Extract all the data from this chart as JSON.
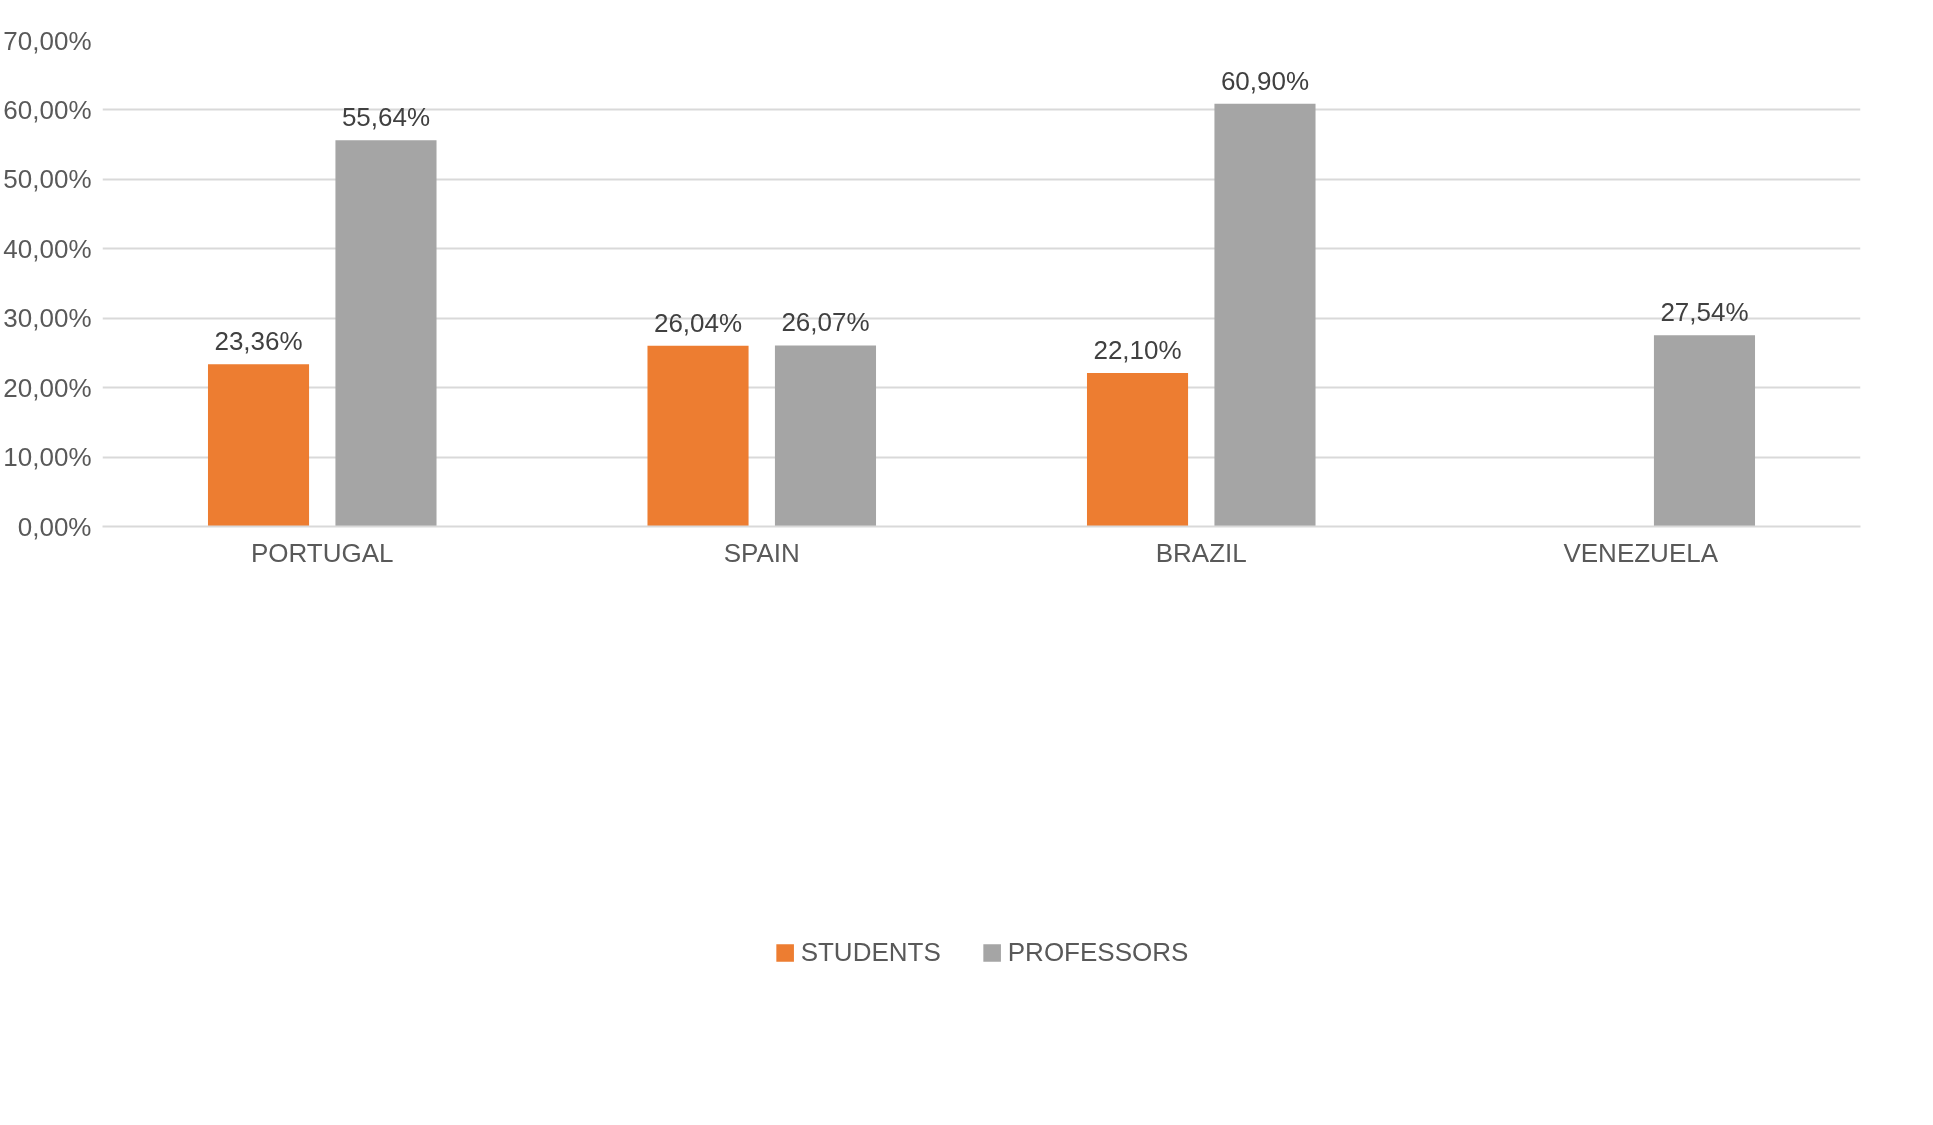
{
  "chart_data": {
    "type": "bar",
    "categories": [
      "PORTUGAL",
      "SPAIN",
      "BRAZIL",
      "VENEZUELA"
    ],
    "series": [
      {
        "name": "STUDENTS",
        "color": "#ed7d31",
        "values": [
          23.36,
          26.04,
          22.1,
          null
        ],
        "value_labels": [
          "23,36%",
          "26,04%",
          "22,10%",
          null
        ]
      },
      {
        "name": "PROFESSORS",
        "color": "#a5a5a5",
        "values": [
          55.64,
          26.07,
          60.9,
          27.54
        ],
        "value_labels": [
          "55,64%",
          "26,07%",
          "60,90%",
          "27,54%"
        ]
      }
    ],
    "ylim": [
      0,
      70
    ],
    "yticks": [
      {
        "value": 0,
        "label": "0,00%"
      },
      {
        "value": 10,
        "label": "10,00%"
      },
      {
        "value": 20,
        "label": "20,00%"
      },
      {
        "value": 30,
        "label": "30,00%"
      },
      {
        "value": 40,
        "label": "40,00%"
      },
      {
        "value": 50,
        "label": "50,00%"
      },
      {
        "value": 60,
        "label": "60,00%"
      },
      {
        "value": 70,
        "label": "70,00%"
      }
    ],
    "grid": "y",
    "legend": "bottom"
  }
}
